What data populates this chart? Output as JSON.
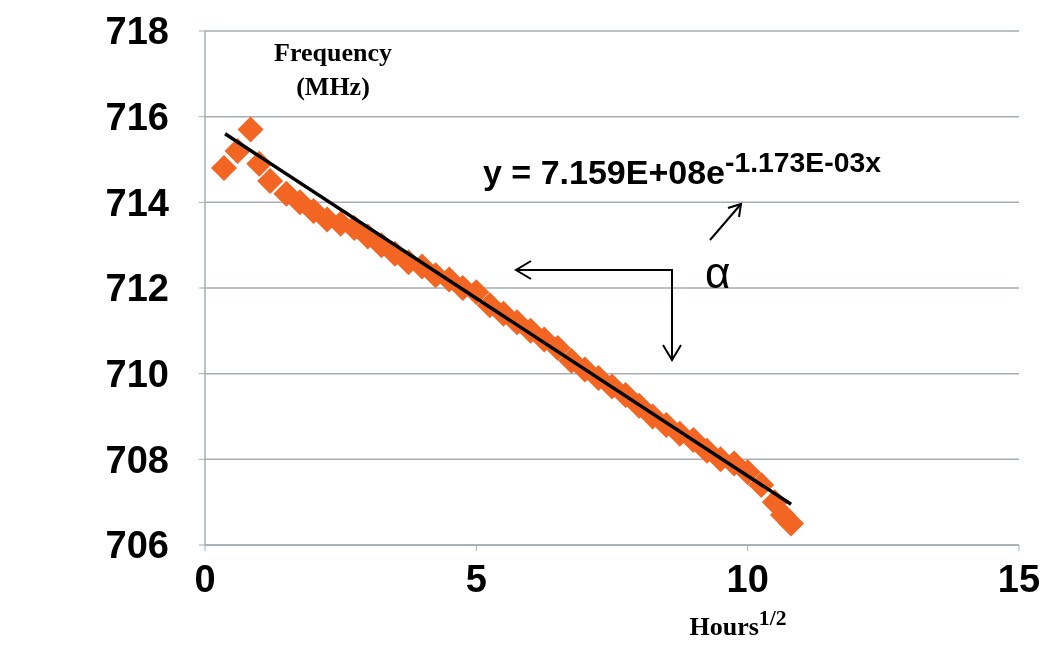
{
  "chart_data": {
    "type": "scatter",
    "xlabel": "Hours$^{1/2}$",
    "ylabel": "Frequency (MHz)",
    "annotations": [
      "y = 7.159E+08e$^{-1.173E-03x}$",
      "α"
    ],
    "series": [
      {
        "color": "#f26522",
        "marker": "diamond",
        "x": [
          0.35,
          0.6,
          0.84,
          1.0,
          1.2,
          1.5,
          1.75,
          2.0,
          2.25,
          2.5,
          2.75,
          3.0,
          3.25,
          3.5,
          3.75,
          4.0,
          4.25,
          4.5,
          4.75,
          5.0,
          5.25,
          5.5,
          5.75,
          6.0,
          6.25,
          6.5,
          6.75,
          7.0,
          7.25,
          7.5,
          7.75,
          8.0,
          8.25,
          8.5,
          8.75,
          9.0,
          9.25,
          9.5,
          9.75,
          10.0,
          10.25,
          10.5,
          10.65,
          10.8
        ],
        "values": [
          714.8,
          715.2,
          715.7,
          714.9,
          714.5,
          714.2,
          714.0,
          713.8,
          713.6,
          713.5,
          713.4,
          713.2,
          713.0,
          712.8,
          712.6,
          712.5,
          712.3,
          712.2,
          712.0,
          711.9,
          711.6,
          711.4,
          711.2,
          711.0,
          710.8,
          710.6,
          710.3,
          710.1,
          709.9,
          709.7,
          709.5,
          709.25,
          709.0,
          708.8,
          708.6,
          708.45,
          708.2,
          708.0,
          707.9,
          707.7,
          707.4,
          707.0,
          706.7,
          706.5
        ]
      },
      {
        "type": "line",
        "color": "#000000",
        "marker": "none",
        "x": [
          0.37,
          10.8
        ],
        "values": [
          715.6,
          706.95
        ]
      }
    ],
    "xlim": [
      0,
      15
    ],
    "xticks": [
      0,
      5,
      10,
      15
    ],
    "ylim": [
      706,
      718
    ],
    "yticks": [
      706,
      708,
      710,
      712,
      714,
      716,
      718
    ],
    "grid": "y"
  }
}
